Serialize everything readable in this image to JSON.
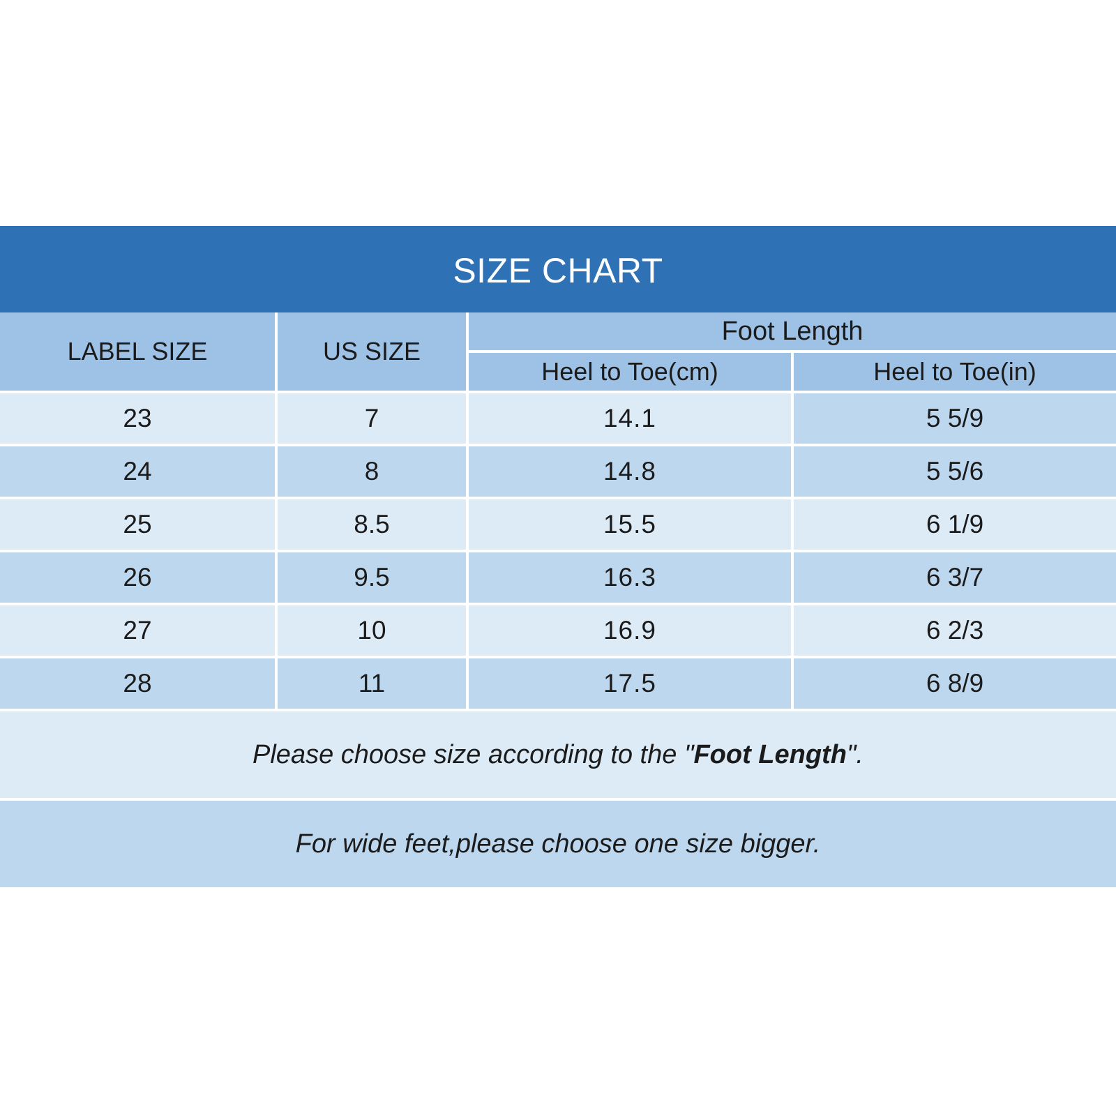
{
  "title": "SIZE CHART",
  "headers": {
    "label_size": "LABEL SIZE",
    "us_size": "US SIZE",
    "foot_length": "Foot Length",
    "heel_to_toe_cm": "Heel to Toe(cm)",
    "heel_to_toe_in": "Heel to Toe(in)"
  },
  "rows": [
    {
      "label_size": "23",
      "us_size": "7",
      "cm": "14.1",
      "in": "5 5/9"
    },
    {
      "label_size": "24",
      "us_size": "8",
      "cm": "14.8",
      "in": "5 5/6"
    },
    {
      "label_size": "25",
      "us_size": "8.5",
      "cm": "15.5",
      "in": "6 1/9"
    },
    {
      "label_size": "26",
      "us_size": "9.5",
      "cm": "16.3",
      "in": "6 3/7"
    },
    {
      "label_size": "27",
      "us_size": "10",
      "cm": "16.9",
      "in": "6 2/3"
    },
    {
      "label_size": "28",
      "us_size": "11",
      "cm": "17.5",
      "in": "6 8/9"
    }
  ],
  "notes": {
    "line1_prefix": "Please choose size according to the \"",
    "line1_emphasis": "Foot Length",
    "line1_suffix": "\".",
    "line2": "For wide feet,please choose one size bigger."
  },
  "colors": {
    "title_bar": "#2e72b5",
    "header": "#9dc2e5",
    "row_light": "#ddebf7",
    "row_dark": "#bdd7ee"
  }
}
